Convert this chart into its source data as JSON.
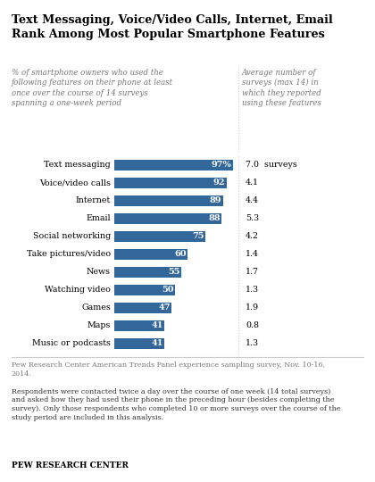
{
  "title": "Text Messaging, Voice/Video Calls, Internet, Email\nRank Among Most Popular Smartphone Features",
  "left_header": "% of smartphone owners who used the\nfollowing features on their phone at least\nonce over the course of 14 surveys\nspanning a one-week period",
  "right_header": "Average number of\nsurveys (max 14) in\nwhich they reported\nusing these features",
  "categories": [
    "Text messaging",
    "Voice/video calls",
    "Internet",
    "Email",
    "Social networking",
    "Take pictures/video",
    "News",
    "Watching video",
    "Games",
    "Maps",
    "Music or podcasts"
  ],
  "values": [
    97,
    92,
    89,
    88,
    75,
    60,
    55,
    50,
    47,
    41,
    41
  ],
  "avg_surveys": [
    "7.0  surveys",
    "4.1",
    "4.4",
    "5.3",
    "4.2",
    "1.4",
    "1.7",
    "1.3",
    "1.9",
    "0.8",
    "1.3"
  ],
  "bar_color": "#336699",
  "bar_label_color": "#ffffff",
  "source_text": "Pew Research Center American Trends Panel experience sampling survey, Nov. 10-16,\n2014.",
  "footnote_text": "Respondents were contacted twice a day over the course of one week (14 total surveys)\nand asked how they had used their phone in the preceding hour (besides completing the\nsurvey). Only those respondents who completed 10 or more surveys over the course of the\nstudy period are included in this analysis.",
  "branding_text": "PEW RESEARCH CENTER",
  "background_color": "#ffffff",
  "divider_color": "#cccccc",
  "source_color": "#777777",
  "footnote_color": "#333333"
}
